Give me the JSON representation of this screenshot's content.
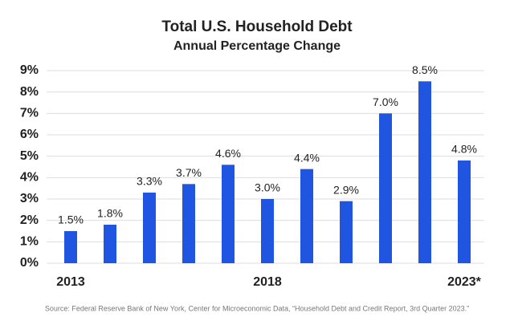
{
  "chart_data": {
    "type": "bar",
    "title": "Total U.S. Household Debt",
    "subtitle": "Annual Percentage Change",
    "categories": [
      "2013",
      null,
      null,
      null,
      null,
      "2018",
      null,
      null,
      null,
      null,
      "2023*"
    ],
    "values": [
      1.5,
      1.8,
      3.3,
      3.7,
      4.6,
      3.0,
      4.4,
      2.9,
      7.0,
      8.5,
      4.8
    ],
    "value_labels": [
      "1.5%",
      "1.8%",
      "3.3%",
      "3.7%",
      "4.6%",
      "3.0%",
      "4.4%",
      "2.9%",
      "7.0%",
      "8.5%",
      "4.8%"
    ],
    "color": "#1f55e0",
    "ylim": [
      0,
      9
    ],
    "yticks": [
      {
        "value": 0,
        "label": "0%"
      },
      {
        "value": 1,
        "label": "1%"
      },
      {
        "value": 2,
        "label": "2%"
      },
      {
        "value": 3,
        "label": "3%"
      },
      {
        "value": 4,
        "label": "4%"
      },
      {
        "value": 5,
        "label": "5%"
      },
      {
        "value": 6,
        "label": "6%"
      },
      {
        "value": 7,
        "label": "7%"
      },
      {
        "value": 8,
        "label": "8%"
      },
      {
        "value": 9,
        "label": "9%"
      }
    ],
    "grid": true,
    "source": "Source: Federal Reserve Bank of New York, Center for Microeconomic Data, “Household Debt and Credit Report, 3rd Quarter 2023.”"
  }
}
